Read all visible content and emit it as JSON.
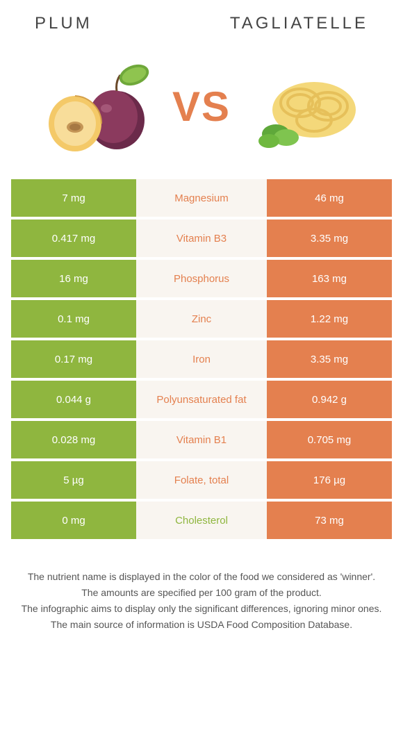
{
  "header": {
    "left_title": "Plum",
    "right_title": "Tagliatelle"
  },
  "vs_label": "VS",
  "colors": {
    "left": "#8fb63f",
    "right": "#e4804f",
    "mid_bg": "#f9f5f0",
    "vs_color": "#e4804f"
  },
  "rows": [
    {
      "left": "7 mg",
      "name": "Magnesium",
      "right": "46 mg",
      "winner": "right"
    },
    {
      "left": "0.417 mg",
      "name": "Vitamin B3",
      "right": "3.35 mg",
      "winner": "right"
    },
    {
      "left": "16 mg",
      "name": "Phosphorus",
      "right": "163 mg",
      "winner": "right"
    },
    {
      "left": "0.1 mg",
      "name": "Zinc",
      "right": "1.22 mg",
      "winner": "right"
    },
    {
      "left": "0.17 mg",
      "name": "Iron",
      "right": "3.35 mg",
      "winner": "right"
    },
    {
      "left": "0.044 g",
      "name": "Polyunsaturated fat",
      "right": "0.942 g",
      "winner": "right"
    },
    {
      "left": "0.028 mg",
      "name": "Vitamin B1",
      "right": "0.705 mg",
      "winner": "right"
    },
    {
      "left": "5 µg",
      "name": "Folate, total",
      "right": "176 µg",
      "winner": "right"
    },
    {
      "left": "0 mg",
      "name": "Cholesterol",
      "right": "73 mg",
      "winner": "left"
    }
  ],
  "footer": {
    "line1": "The nutrient name is displayed in the color of the food we considered as 'winner'.",
    "line2": "The amounts are specified per 100 gram of the product.",
    "line3": "The infographic aims to display only the significant differences, ignoring minor ones.",
    "line4": "The main source of information is USDA Food Composition Database."
  }
}
